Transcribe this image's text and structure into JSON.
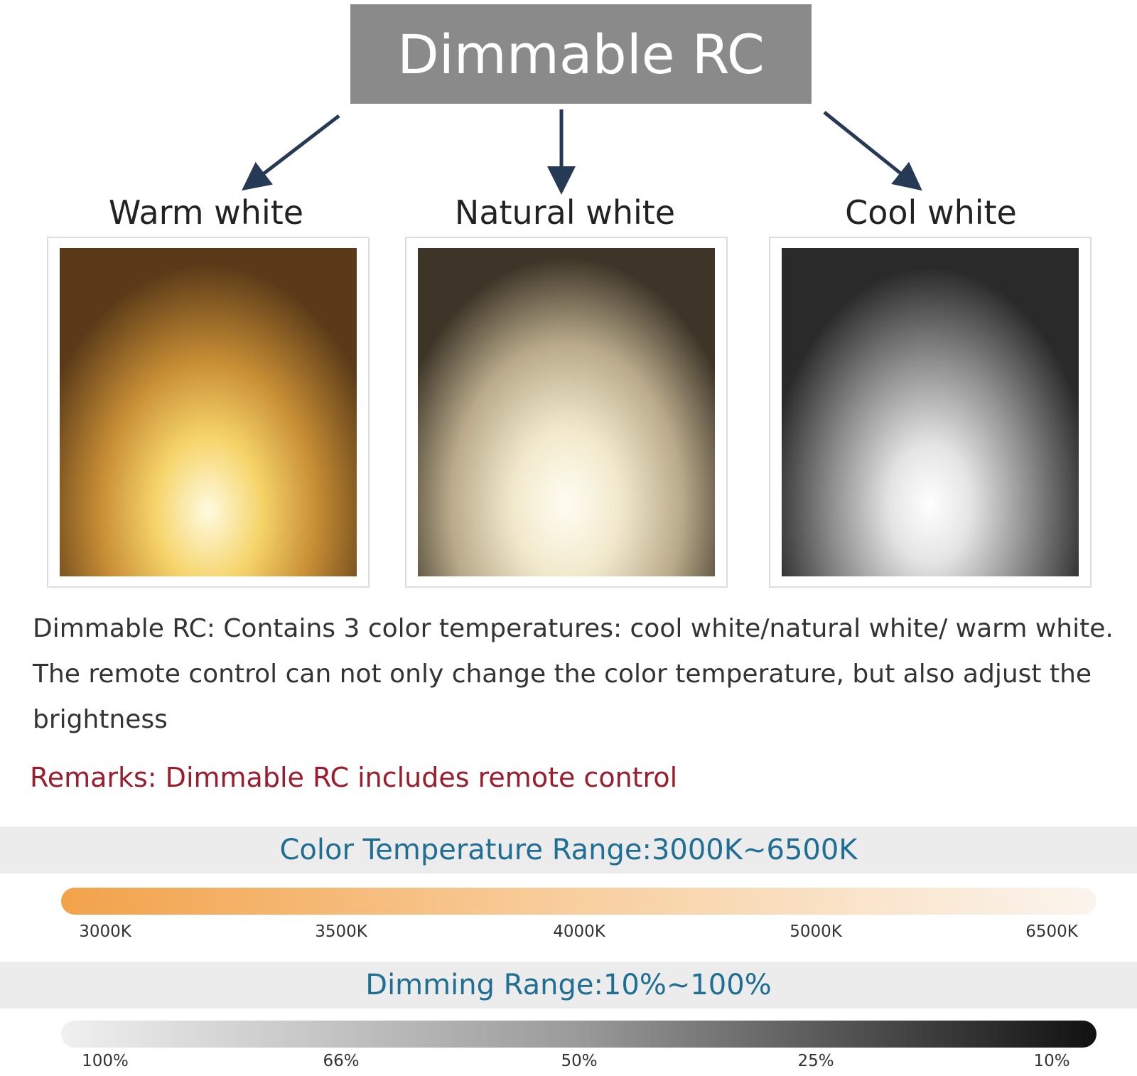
{
  "header": {
    "title": "Dimmable RC"
  },
  "panels": [
    {
      "label": "Warm white"
    },
    {
      "label": "Natural white"
    },
    {
      "label": "Cool white"
    }
  ],
  "description": "Dimmable RC: Contains 3 color temperatures: cool white/natural white/ warm white. The remote control can not only change the color temperature, but also adjust the brightness",
  "remarks": "Remarks: Dimmable RC includes remote control",
  "color_temperature": {
    "title": "Color Temperature Range:3000K~6500K",
    "labels": [
      "3000K",
      "3500K",
      "4000K",
      "5000K",
      "6500K"
    ]
  },
  "dimming": {
    "title": "Dimming Range:10%~100%",
    "labels": [
      "100%",
      "66%",
      "50%",
      "25%",
      "10%"
    ]
  }
}
